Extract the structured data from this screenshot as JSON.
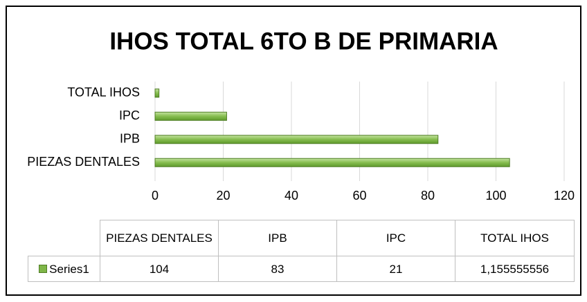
{
  "chart_data": {
    "type": "bar",
    "orientation": "horizontal",
    "title": "IHOS TOTAL 6TO B DE PRIMARIA",
    "categories": [
      "PIEZAS DENTALES",
      "IPB",
      "IPC",
      "TOTAL IHOS"
    ],
    "series": [
      {
        "name": "Series1",
        "color": "#7fb648",
        "values": [
          104,
          83,
          21,
          1.155555556
        ],
        "value_labels": [
          "104",
          "83",
          "21",
          "1,155555556"
        ]
      }
    ],
    "xlim": [
      0,
      120
    ],
    "xticks": [
      0,
      20,
      40,
      60,
      80,
      100,
      120
    ],
    "grid": true,
    "data_table": true
  }
}
